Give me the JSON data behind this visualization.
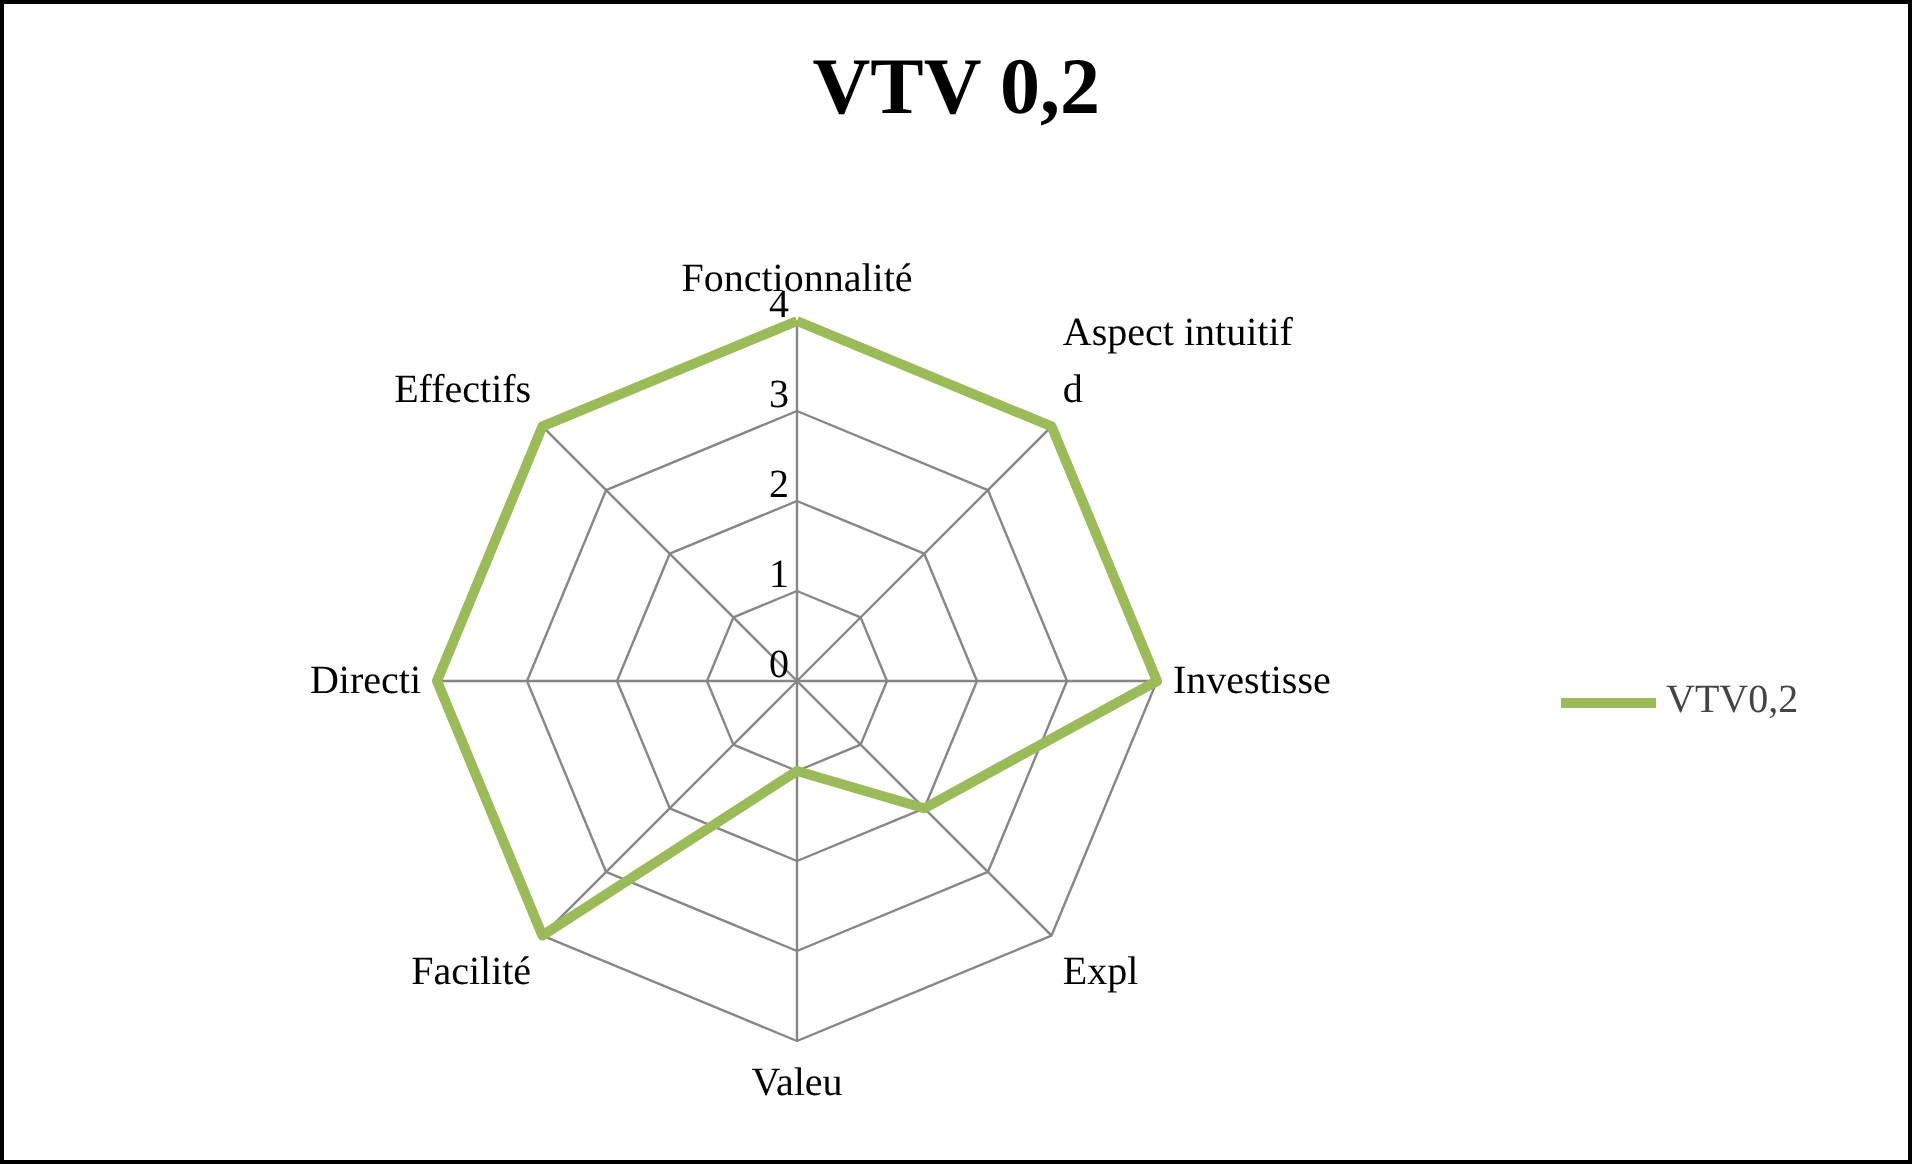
{
  "chart_data": {
    "type": "radar",
    "title": "VTV 0,2",
    "categories": [
      "Fonctionnalité",
      "Aspect intuitif\nd",
      "Investisse",
      "Expl",
      "Valeu",
      "Facilité",
      "Directi",
      "Effectifs"
    ],
    "series": [
      {
        "name": "VTV0,2",
        "color": "#9bbb59",
        "values": [
          4,
          4,
          4,
          2,
          1,
          4,
          4,
          4
        ]
      }
    ],
    "ylim": [
      0,
      4
    ],
    "yticks": [
      0,
      1,
      2,
      3,
      4
    ],
    "grid": true,
    "legend": "right"
  }
}
